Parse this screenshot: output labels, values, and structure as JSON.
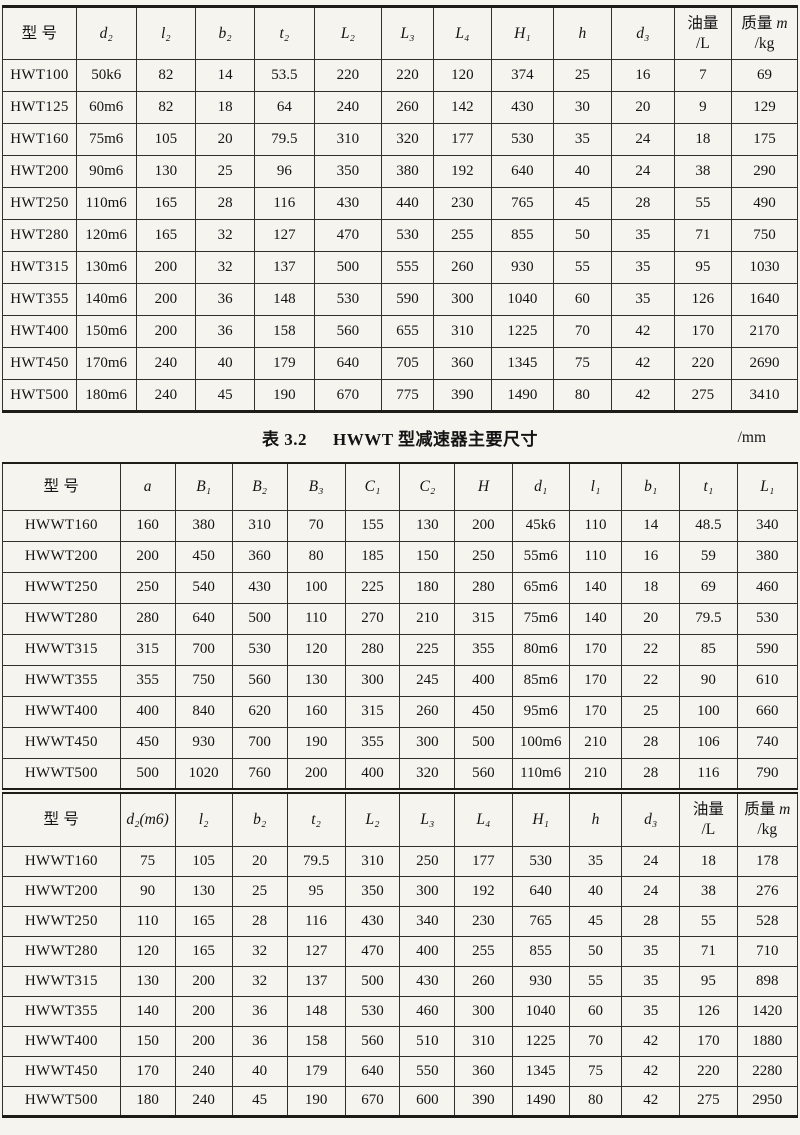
{
  "caption": {
    "label": "表 3.2",
    "title": "HWWT 型减速器主要尺寸",
    "unit": "/mm"
  },
  "table1": {
    "headers": [
      [
        "型  号"
      ],
      [
        "d₂"
      ],
      [
        "l₂"
      ],
      [
        "b₂"
      ],
      [
        "t₂"
      ],
      [
        "L₂"
      ],
      [
        "L₃"
      ],
      [
        "L₄"
      ],
      [
        "H₁"
      ],
      [
        "h"
      ],
      [
        "d₃"
      ],
      [
        "油量",
        "/L"
      ],
      [
        "质量 m",
        "/kg"
      ]
    ],
    "rows": [
      [
        "HWT100",
        "50k6",
        "82",
        "14",
        "53.5",
        "220",
        "220",
        "120",
        "374",
        "25",
        "16",
        "7",
        "69"
      ],
      [
        "HWT125",
        "60m6",
        "82",
        "18",
        "64",
        "240",
        "260",
        "142",
        "430",
        "30",
        "20",
        "9",
        "129"
      ],
      [
        "HWT160",
        "75m6",
        "105",
        "20",
        "79.5",
        "310",
        "320",
        "177",
        "530",
        "35",
        "24",
        "18",
        "175"
      ],
      [
        "HWT200",
        "90m6",
        "130",
        "25",
        "96",
        "350",
        "380",
        "192",
        "640",
        "40",
        "24",
        "38",
        "290"
      ],
      [
        "HWT250",
        "110m6",
        "165",
        "28",
        "116",
        "430",
        "440",
        "230",
        "765",
        "45",
        "28",
        "55",
        "490"
      ],
      [
        "HWT280",
        "120m6",
        "165",
        "32",
        "127",
        "470",
        "530",
        "255",
        "855",
        "50",
        "35",
        "71",
        "750"
      ],
      [
        "HWT315",
        "130m6",
        "200",
        "32",
        "137",
        "500",
        "555",
        "260",
        "930",
        "55",
        "35",
        "95",
        "1030"
      ],
      [
        "HWT355",
        "140m6",
        "200",
        "36",
        "148",
        "530",
        "590",
        "300",
        "1040",
        "60",
        "35",
        "126",
        "1640"
      ],
      [
        "HWT400",
        "150m6",
        "200",
        "36",
        "158",
        "560",
        "655",
        "310",
        "1225",
        "70",
        "42",
        "170",
        "2170"
      ],
      [
        "HWT450",
        "170m6",
        "240",
        "40",
        "179",
        "640",
        "705",
        "360",
        "1345",
        "75",
        "42",
        "220",
        "2690"
      ],
      [
        "HWT500",
        "180m6",
        "240",
        "45",
        "190",
        "670",
        "775",
        "390",
        "1490",
        "80",
        "42",
        "275",
        "3410"
      ]
    ]
  },
  "table2": {
    "headers": [
      [
        "型  号"
      ],
      [
        "a"
      ],
      [
        "B₁"
      ],
      [
        "B₂"
      ],
      [
        "B₃"
      ],
      [
        "C₁"
      ],
      [
        "C₂"
      ],
      [
        "H"
      ],
      [
        "d₁"
      ],
      [
        "l₁"
      ],
      [
        "b₁"
      ],
      [
        "t₁"
      ],
      [
        "L₁"
      ]
    ],
    "rows": [
      [
        "HWWT160",
        "160",
        "380",
        "310",
        "70",
        "155",
        "130",
        "200",
        "45k6",
        "110",
        "14",
        "48.5",
        "340"
      ],
      [
        "HWWT200",
        "200",
        "450",
        "360",
        "80",
        "185",
        "150",
        "250",
        "55m6",
        "110",
        "16",
        "59",
        "380"
      ],
      [
        "HWWT250",
        "250",
        "540",
        "430",
        "100",
        "225",
        "180",
        "280",
        "65m6",
        "140",
        "18",
        "69",
        "460"
      ],
      [
        "HWWT280",
        "280",
        "640",
        "500",
        "110",
        "270",
        "210",
        "315",
        "75m6",
        "140",
        "20",
        "79.5",
        "530"
      ],
      [
        "HWWT315",
        "315",
        "700",
        "530",
        "120",
        "280",
        "225",
        "355",
        "80m6",
        "170",
        "22",
        "85",
        "590"
      ],
      [
        "HWWT355",
        "355",
        "750",
        "560",
        "130",
        "300",
        "245",
        "400",
        "85m6",
        "170",
        "22",
        "90",
        "610"
      ],
      [
        "HWWT400",
        "400",
        "840",
        "620",
        "160",
        "315",
        "260",
        "450",
        "95m6",
        "170",
        "25",
        "100",
        "660"
      ],
      [
        "HWWT450",
        "450",
        "930",
        "700",
        "190",
        "355",
        "300",
        "500",
        "100m6",
        "210",
        "28",
        "106",
        "740"
      ],
      [
        "HWWT500",
        "500",
        "1020",
        "760",
        "200",
        "400",
        "320",
        "560",
        "110m6",
        "210",
        "28",
        "116",
        "790"
      ]
    ]
  },
  "table3": {
    "headers": [
      [
        "型  号"
      ],
      [
        "d₂(m6)"
      ],
      [
        "l₂"
      ],
      [
        "b₂"
      ],
      [
        "t₂"
      ],
      [
        "L₂"
      ],
      [
        "L₃"
      ],
      [
        "L₄"
      ],
      [
        "H₁"
      ],
      [
        "h"
      ],
      [
        "d₃"
      ],
      [
        "油量",
        "/L"
      ],
      [
        "质量 m",
        "/kg"
      ]
    ],
    "rows": [
      [
        "HWWT160",
        "75",
        "105",
        "20",
        "79.5",
        "310",
        "250",
        "177",
        "530",
        "35",
        "24",
        "18",
        "178"
      ],
      [
        "HWWT200",
        "90",
        "130",
        "25",
        "95",
        "350",
        "300",
        "192",
        "640",
        "40",
        "24",
        "38",
        "276"
      ],
      [
        "HWWT250",
        "110",
        "165",
        "28",
        "116",
        "430",
        "340",
        "230",
        "765",
        "45",
        "28",
        "55",
        "528"
      ],
      [
        "HWWT280",
        "120",
        "165",
        "32",
        "127",
        "470",
        "400",
        "255",
        "855",
        "50",
        "35",
        "71",
        "710"
      ],
      [
        "HWWT315",
        "130",
        "200",
        "32",
        "137",
        "500",
        "430",
        "260",
        "930",
        "55",
        "35",
        "95",
        "898"
      ],
      [
        "HWWT355",
        "140",
        "200",
        "36",
        "148",
        "530",
        "460",
        "300",
        "1040",
        "60",
        "35",
        "126",
        "1420"
      ],
      [
        "HWWT400",
        "150",
        "200",
        "36",
        "158",
        "560",
        "510",
        "310",
        "1225",
        "70",
        "42",
        "170",
        "1880"
      ],
      [
        "HWWT450",
        "170",
        "240",
        "40",
        "179",
        "640",
        "550",
        "360",
        "1345",
        "75",
        "42",
        "220",
        "2280"
      ],
      [
        "HWWT500",
        "180",
        "240",
        "45",
        "190",
        "670",
        "600",
        "390",
        "1490",
        "80",
        "42",
        "275",
        "2950"
      ]
    ]
  }
}
